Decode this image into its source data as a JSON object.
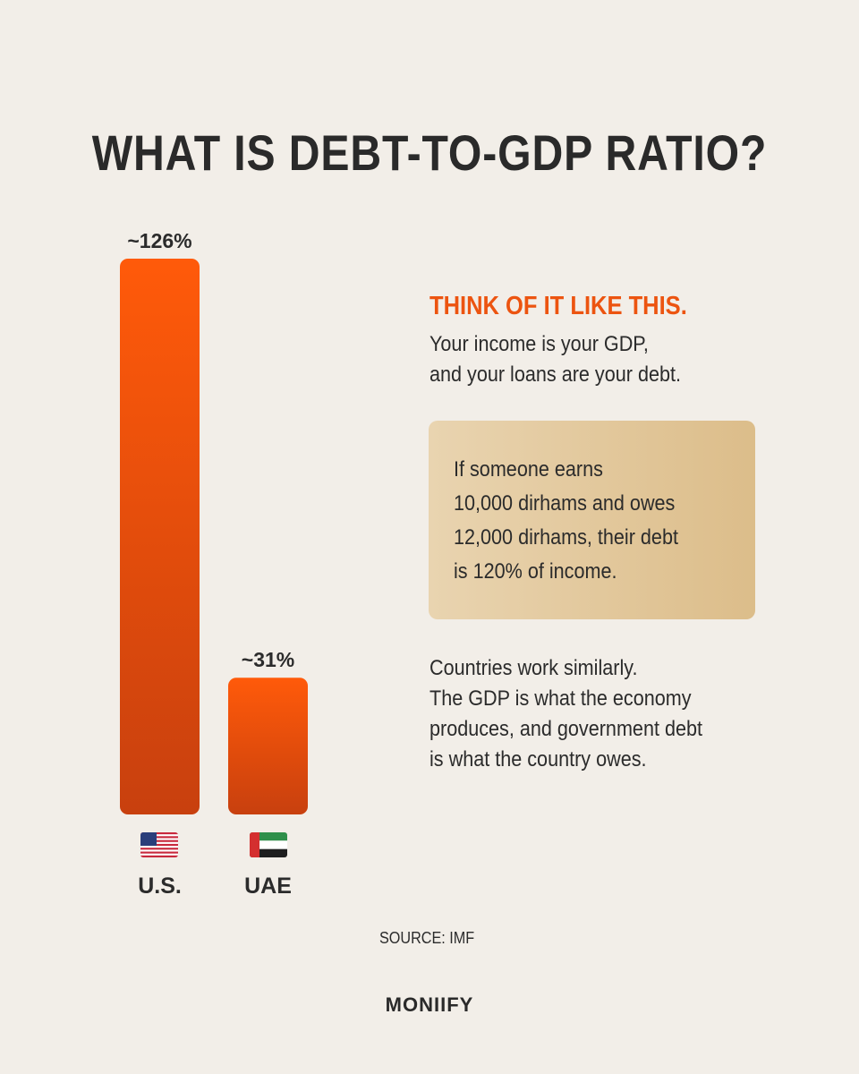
{
  "title": "WHAT IS DEBT-TO-GDP RATIO?",
  "chart_data": {
    "type": "bar",
    "categories": [
      "U.S.",
      "UAE"
    ],
    "values": [
      126,
      31
    ],
    "data_labels": [
      "~126%",
      "~31%"
    ],
    "icons": [
      "us-flag-icon",
      "uae-flag-icon"
    ],
    "ylim": [
      0,
      126
    ],
    "grid": false,
    "colors": {
      "bar_top": "#ff5a0a",
      "bar_bottom": "#c8400e"
    }
  },
  "explainer": {
    "lead": "THINK OF IT LIKE THIS.",
    "intro_lines": [
      "Your income is your GDP,",
      "and your loans are your debt."
    ],
    "example_lines": [
      "If someone earns",
      "10,000 dirhams and owes",
      "12,000 dirhams, their debt",
      "is 120% of income."
    ],
    "outro_lines": [
      "Countries work similarly.",
      "The GDP is what the economy",
      "produces, and government debt",
      "is what the country owes."
    ]
  },
  "source": "SOURCE: IMF",
  "brand": "MONIIFY"
}
